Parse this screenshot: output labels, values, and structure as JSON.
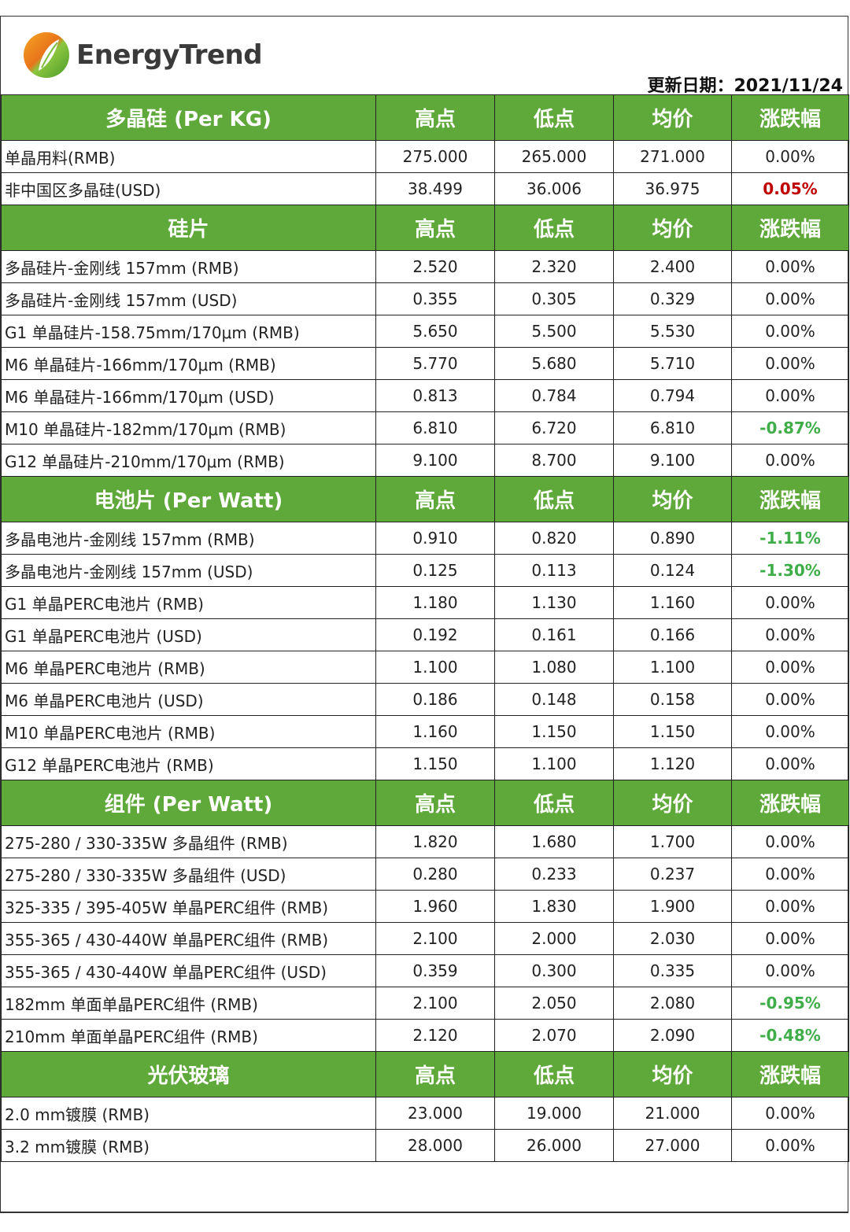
{
  "brand": {
    "name": "EnergyTrend",
    "colors": {
      "orange": "#f08a1c",
      "green": "#6bb52e"
    }
  },
  "update_label": "更新日期：2021/11/24",
  "colors": {
    "header_bg": "#5fa83a",
    "up": "#c00000",
    "down": "#3fae49"
  },
  "sections": [
    {
      "title": "多晶硅 (Per KG)",
      "columns": [
        "高点",
        "低点",
        "均价",
        "涨跌幅"
      ],
      "rows": [
        {
          "name": "单晶用料(RMB)",
          "high": "275.000",
          "low": "265.000",
          "avg": "271.000",
          "change": "0.00%",
          "trend": "flat"
        },
        {
          "name": "非中国区多晶硅(USD)",
          "high": "38.499",
          "low": "36.006",
          "avg": "36.975",
          "change": "0.05%",
          "trend": "up"
        }
      ]
    },
    {
      "title": "硅片",
      "columns": [
        "高点",
        "低点",
        "均价",
        "涨跌幅"
      ],
      "rows": [
        {
          "name": "多晶硅片-金刚线 157mm (RMB)",
          "high": "2.520",
          "low": "2.320",
          "avg": "2.400",
          "change": "0.00%",
          "trend": "flat"
        },
        {
          "name": "多晶硅片-金刚线 157mm (USD)",
          "high": "0.355",
          "low": "0.305",
          "avg": "0.329",
          "change": "0.00%",
          "trend": "flat"
        },
        {
          "name": "G1 单晶硅片-158.75mm/170μm (RMB)",
          "high": "5.650",
          "low": "5.500",
          "avg": "5.530",
          "change": "0.00%",
          "trend": "flat"
        },
        {
          "name": "M6 单晶硅片-166mm/170μm (RMB)",
          "high": "5.770",
          "low": "5.680",
          "avg": "5.710",
          "change": "0.00%",
          "trend": "flat"
        },
        {
          "name": "M6 单晶硅片-166mm/170μm (USD)",
          "high": "0.813",
          "low": "0.784",
          "avg": "0.794",
          "change": "0.00%",
          "trend": "flat"
        },
        {
          "name": "M10 单晶硅片-182mm/170μm (RMB)",
          "high": "6.810",
          "low": "6.720",
          "avg": "6.810",
          "change": "-0.87%",
          "trend": "down"
        },
        {
          "name": "G12 单晶硅片-210mm/170μm  (RMB)",
          "high": "9.100",
          "low": "8.700",
          "avg": "9.100",
          "change": "0.00%",
          "trend": "flat"
        }
      ]
    },
    {
      "title": "电池片 (Per Watt)",
      "columns": [
        "高点",
        "低点",
        "均价",
        "涨跌幅"
      ],
      "rows": [
        {
          "name": "多晶电池片-金刚线 157mm (RMB)",
          "high": "0.910",
          "low": "0.820",
          "avg": "0.890",
          "change": "-1.11%",
          "trend": "down"
        },
        {
          "name": "多晶电池片-金刚线 157mm (USD)",
          "high": "0.125",
          "low": "0.113",
          "avg": "0.124",
          "change": "-1.30%",
          "trend": "down"
        },
        {
          "name": "G1 单晶PERC电池片 (RMB)",
          "high": "1.180",
          "low": "1.130",
          "avg": "1.160",
          "change": "0.00%",
          "trend": "flat"
        },
        {
          "name": "G1 单晶PERC电池片  (USD)",
          "high": "0.192",
          "low": "0.161",
          "avg": "0.166",
          "change": "0.00%",
          "trend": "flat"
        },
        {
          "name": "M6 单晶PERC电池片 (RMB)",
          "high": "1.100",
          "low": "1.080",
          "avg": "1.100",
          "change": "0.00%",
          "trend": "flat"
        },
        {
          "name": "M6 单晶PERC电池片 (USD)",
          "high": "0.186",
          "low": "0.148",
          "avg": "0.158",
          "change": "0.00%",
          "trend": "flat"
        },
        {
          "name": "M10 单晶PERC电池片 (RMB)",
          "high": "1.160",
          "low": "1.150",
          "avg": "1.150",
          "change": "0.00%",
          "trend": "flat"
        },
        {
          "name": "G12 单晶PERC电池片 (RMB)",
          "high": "1.150",
          "low": "1.100",
          "avg": "1.120",
          "change": "0.00%",
          "trend": "flat"
        }
      ]
    },
    {
      "title": "组件 (Per Watt)",
      "columns": [
        "高点",
        "低点",
        "均价",
        "涨跌幅"
      ],
      "rows": [
        {
          "name": "275-280 / 330-335W 多晶组件 (RMB)",
          "high": "1.820",
          "low": "1.680",
          "avg": "1.700",
          "change": "0.00%",
          "trend": "flat"
        },
        {
          "name": "275-280 / 330-335W 多晶组件 (USD)",
          "high": "0.280",
          "low": "0.233",
          "avg": "0.237",
          "change": "0.00%",
          "trend": "flat"
        },
        {
          "name": "325-335 / 395-405W 单晶PERC组件 (RMB)",
          "high": "1.960",
          "low": "1.830",
          "avg": "1.900",
          "change": "0.00%",
          "trend": "flat"
        },
        {
          "name": "355-365 / 430-440W 单晶PERC组件 (RMB)",
          "high": "2.100",
          "low": "2.000",
          "avg": "2.030",
          "change": "0.00%",
          "trend": "flat"
        },
        {
          "name": "355-365 / 430-440W 单晶PERC组件 (USD)",
          "high": "0.359",
          "low": "0.300",
          "avg": "0.335",
          "change": "0.00%",
          "trend": "flat"
        },
        {
          "name": "182mm 单面单晶PERC组件 (RMB)",
          "high": "2.100",
          "low": "2.050",
          "avg": "2.080",
          "change": "-0.95%",
          "trend": "down"
        },
        {
          "name": "210mm 单面单晶PERC组件 (RMB)",
          "high": "2.120",
          "low": "2.070",
          "avg": "2.090",
          "change": "-0.48%",
          "trend": "down"
        }
      ]
    },
    {
      "title": "光伏玻璃",
      "columns": [
        "高点",
        "低点",
        "均价",
        "涨跌幅"
      ],
      "rows": [
        {
          "name": "2.0 mm镀膜 (RMB)",
          "high": "23.000",
          "low": "19.000",
          "avg": "21.000",
          "change": "0.00%",
          "trend": "flat"
        },
        {
          "name": "3.2 mm镀膜 (RMB)",
          "high": "28.000",
          "low": "26.000",
          "avg": "27.000",
          "change": "0.00%",
          "trend": "flat"
        }
      ]
    }
  ]
}
